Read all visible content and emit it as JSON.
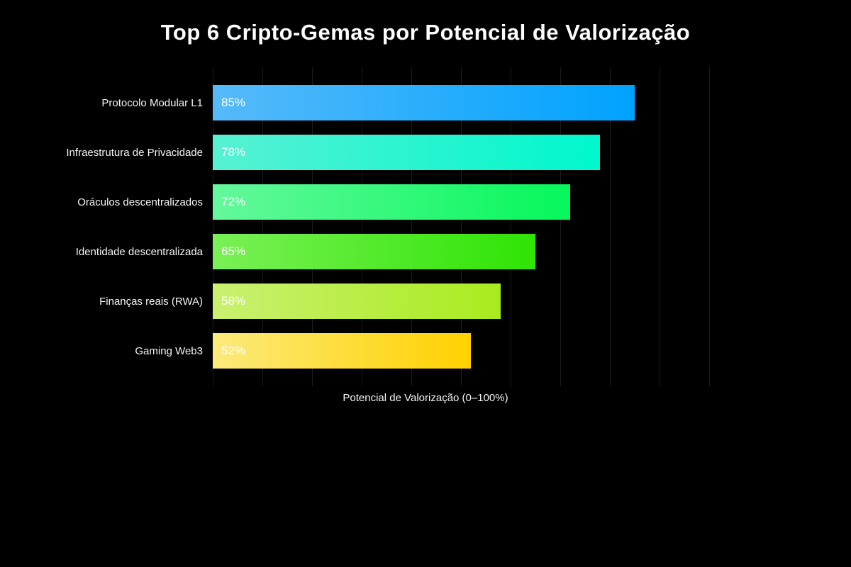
{
  "title": "Top 6 Cripto-Gemas por Potencial de Valorização",
  "chart_data": {
    "type": "bar",
    "orientation": "horizontal",
    "title": "Top 6 Cripto-Gemas por Potencial de Valorização",
    "categories": [
      "Protocolo Modular L1",
      "Infraestrutura de Privacidade",
      "Oráculos descentralizados",
      "Identidade descentralizada",
      "Finanças reais (RWA)",
      "Gaming Web3"
    ],
    "values": [
      85,
      78,
      72,
      65,
      58,
      52
    ],
    "value_labels": [
      "85%",
      "78%",
      "72%",
      "65%",
      "58%",
      "52%"
    ],
    "bar_gradients": [
      {
        "from": "#56baf9",
        "to": "#00a2ff"
      },
      {
        "from": "#57f1d3",
        "to": "#00f7cd"
      },
      {
        "from": "#64f89c",
        "to": "#06f75b"
      },
      {
        "from": "#7af056",
        "to": "#2fe404"
      },
      {
        "from": "#caf071",
        "to": "#a9eb1f"
      },
      {
        "from": "#fcea7b",
        "to": "#ffd100"
      }
    ],
    "xlabel": "Potencial de Valorização (0–100%)",
    "xlim": [
      0,
      100
    ],
    "grid": {
      "visible": true,
      "interval": 10,
      "color": "#1c1c1c",
      "axis": "x"
    },
    "legend": null,
    "background": "#000000",
    "text_color": "#ffffff"
  }
}
